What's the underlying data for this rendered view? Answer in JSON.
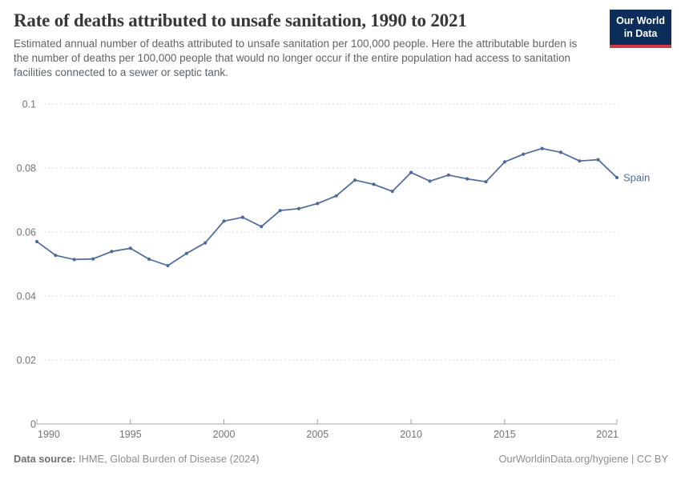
{
  "header": {
    "title": "Rate of deaths attributed to unsafe sanitation, 1990 to 2021",
    "subtitle": "Estimated annual number of deaths attributed to unsafe sanitation per 100,000 people. Here the attributable burden is the number of deaths per 100,000 people that would no longer occur if the entire population had access to sanitation facilities connected to a sewer or septic tank."
  },
  "logo": {
    "line1": "Our World",
    "line2": "in Data",
    "bg_color": "#0d2e5b",
    "stripe_color": "#d23a42"
  },
  "chart_data": {
    "type": "line",
    "title": "Rate of deaths attributed to unsafe sanitation, 1990 to 2021",
    "xlabel": "",
    "ylabel": "",
    "ylim": [
      0,
      0.1
    ],
    "x_range": [
      1990,
      2021
    ],
    "grid": true,
    "legend_position": "end-of-line",
    "colors": {
      "gridline": "#dcdcdc",
      "axis": "#a3a3a3",
      "tick_text": "#737373"
    },
    "y_ticks": [
      {
        "v": 0,
        "label": "0"
      },
      {
        "v": 0.02,
        "label": "0.02"
      },
      {
        "v": 0.04,
        "label": "0.04"
      },
      {
        "v": 0.06,
        "label": "0.06"
      },
      {
        "v": 0.08,
        "label": "0.08"
      },
      {
        "v": 0.1,
        "label": "0.1"
      }
    ],
    "x_ticks": [
      {
        "year": 1990,
        "label": "1990"
      },
      {
        "year": 1995,
        "label": "1995"
      },
      {
        "year": 2000,
        "label": "2000"
      },
      {
        "year": 2005,
        "label": "2005"
      },
      {
        "year": 2010,
        "label": "2010"
      },
      {
        "year": 2015,
        "label": "2015"
      },
      {
        "year": 2021,
        "label": "2021"
      }
    ],
    "series": [
      {
        "name": "Spain",
        "color": "#4c6a9c",
        "x": [
          1990,
          1991,
          1992,
          1993,
          1994,
          1995,
          1996,
          1997,
          1998,
          1999,
          2000,
          2001,
          2002,
          2003,
          2004,
          2005,
          2006,
          2007,
          2008,
          2009,
          2010,
          2011,
          2012,
          2013,
          2014,
          2015,
          2016,
          2017,
          2018,
          2019,
          2020,
          2021
        ],
        "values": [
          0.057,
          0.0527,
          0.0514,
          0.0516,
          0.0539,
          0.0549,
          0.0515,
          0.0495,
          0.0533,
          0.0566,
          0.0634,
          0.0646,
          0.0617,
          0.0667,
          0.0673,
          0.0689,
          0.0713,
          0.0762,
          0.0749,
          0.0727,
          0.0786,
          0.0759,
          0.0778,
          0.0766,
          0.0757,
          0.0819,
          0.0843,
          0.0861,
          0.0849,
          0.0822,
          0.0826,
          0.077
        ]
      }
    ]
  },
  "footer": {
    "source_label": "Data source:",
    "source_text": " IHME, Global Burden of Disease (2024)",
    "credit": "OurWorldinData.org/hygiene | CC BY"
  }
}
